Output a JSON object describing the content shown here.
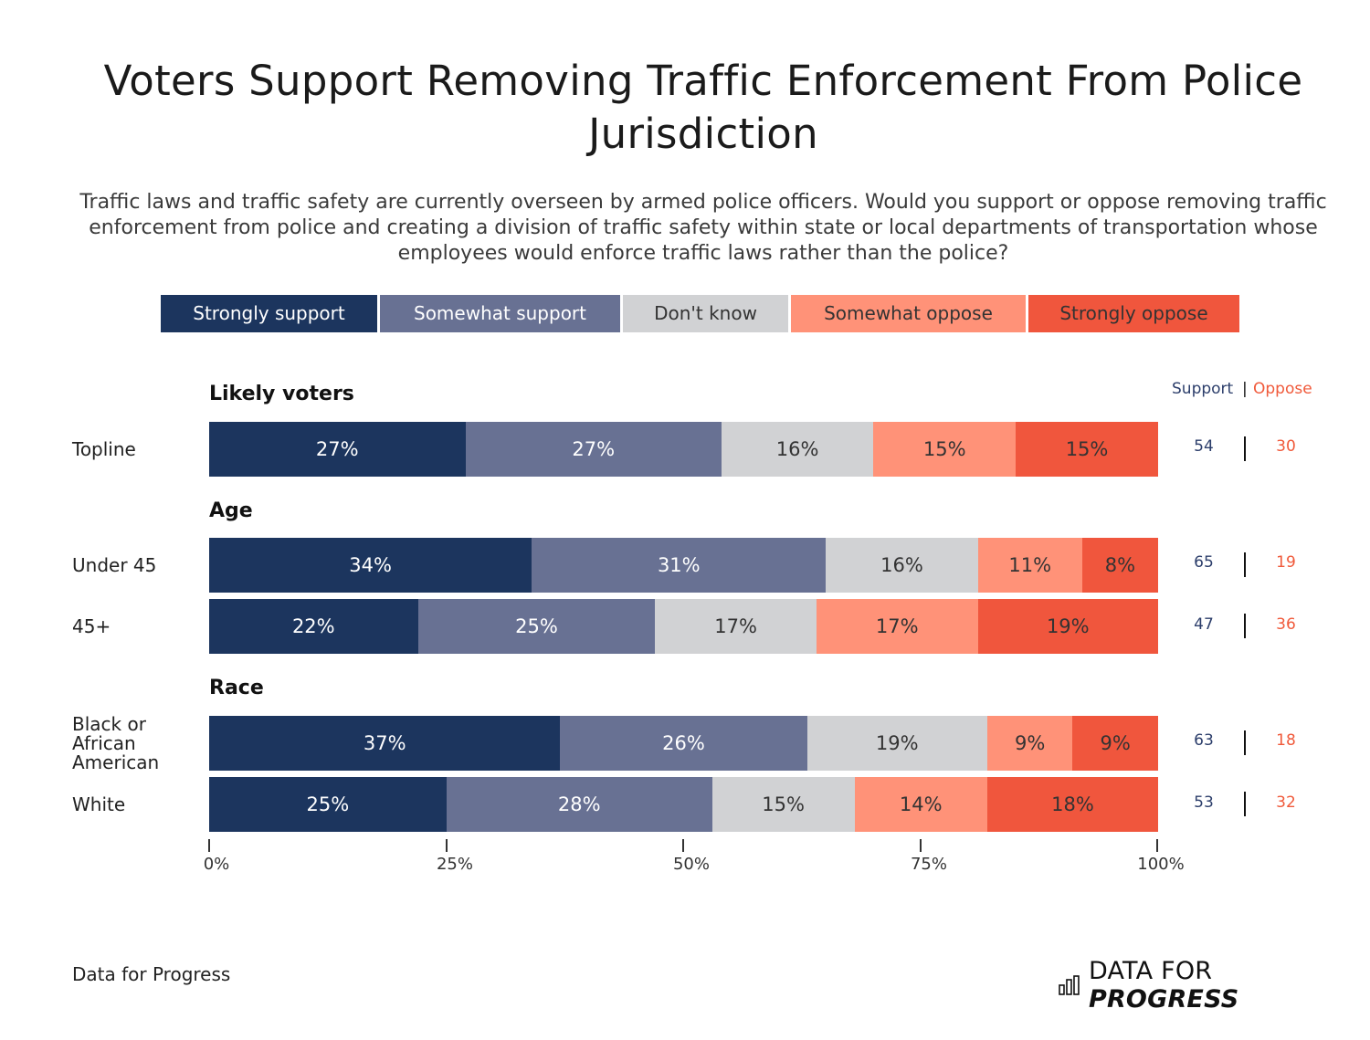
{
  "title": "Voters Support Removing Traffic Enforcement From Police Jurisdiction",
  "subtitle": "Traffic laws and traffic safety are currently overseen by armed police officers. Would you support or oppose removing traffic enforcement from police and creating a division of traffic safety within state or local departments of transportation whose employees would enforce traffic laws rather than the police?",
  "legend": [
    {
      "label": "Strongly support",
      "color": "#1c355e",
      "text_color": "#ffffff"
    },
    {
      "label": "Somewhat support",
      "color": "#687193",
      "text_color": "#ffffff"
    },
    {
      "label": "Don't know",
      "color": "#d1d2d4",
      "text_color": "#333333"
    },
    {
      "label": "Somewhat oppose",
      "color": "#ff9278",
      "text_color": "#333333"
    },
    {
      "label": "Strongly oppose",
      "color": "#f0563d",
      "text_color": "#333333"
    }
  ],
  "summary_header": {
    "support": "Support",
    "separator": "|",
    "oppose": "Oppose"
  },
  "chart_data": {
    "type": "bar",
    "orientation": "horizontal",
    "stacked": true,
    "title": "Voters Support Removing Traffic Enforcement From Police Jurisdiction",
    "categories_legend": [
      "Strongly support",
      "Somewhat support",
      "Don't know",
      "Somewhat oppose",
      "Strongly oppose"
    ],
    "xlim": [
      0,
      100
    ],
    "x_ticks": [
      "0%",
      "25%",
      "50%",
      "75%",
      "100%"
    ],
    "groups": [
      {
        "title": "Likely voters",
        "rows": [
          {
            "label": "Topline",
            "values": [
              27,
              27,
              16,
              15,
              15
            ],
            "labels": [
              "27%",
              "27%",
              "16%",
              "15%",
              "15%"
            ],
            "support": "54",
            "oppose": "30"
          }
        ]
      },
      {
        "title": "Age",
        "rows": [
          {
            "label": "Under 45",
            "values": [
              34,
              31,
              16,
              11,
              8
            ],
            "labels": [
              "34%",
              "31%",
              "16%",
              "11%",
              "8%"
            ],
            "support": "65",
            "oppose": "19"
          },
          {
            "label": "45+",
            "values": [
              22,
              25,
              17,
              17,
              19
            ],
            "labels": [
              "22%",
              "25%",
              "17%",
              "17%",
              "19%"
            ],
            "support": "47",
            "oppose": "36"
          }
        ]
      },
      {
        "title": "Race",
        "rows": [
          {
            "label": "Black or African American",
            "values": [
              37,
              26,
              19,
              9,
              9
            ],
            "labels": [
              "37%",
              "26%",
              "19%",
              "9%",
              "9%"
            ],
            "support": "63",
            "oppose": "18"
          },
          {
            "label": "White",
            "values": [
              25,
              28,
              15,
              14,
              18
            ],
            "labels": [
              "25%",
              "28%",
              "15%",
              "14%",
              "18%"
            ],
            "support": "53",
            "oppose": "32"
          }
        ]
      }
    ]
  },
  "footer": {
    "source": "Data for Progress",
    "brand_plain": "DATA FOR ",
    "brand_bold": "PROGRESS",
    "brand_icon": "bar-chart-icon"
  }
}
